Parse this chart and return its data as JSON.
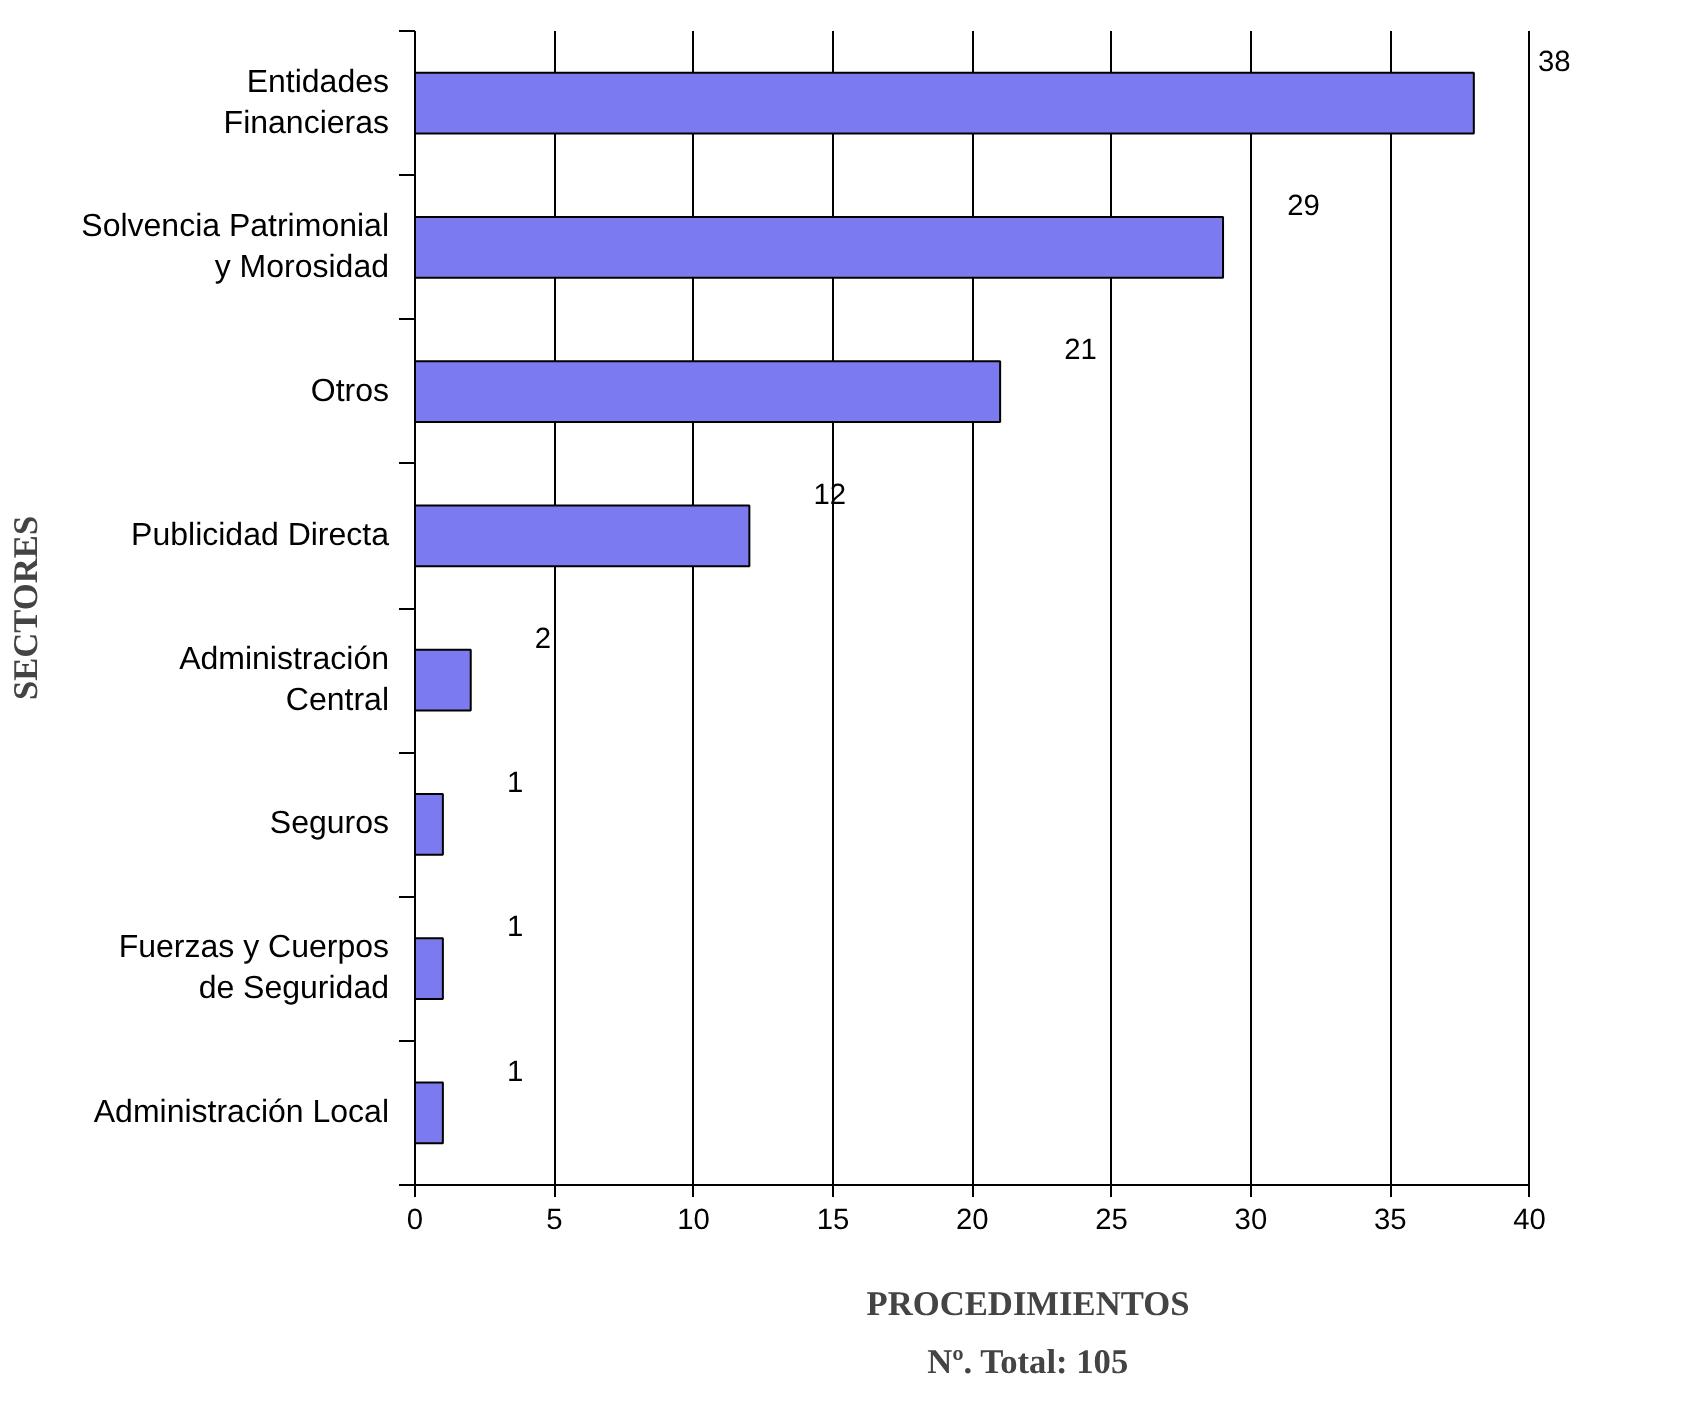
{
  "chart_data": {
    "type": "bar",
    "orientation": "horizontal",
    "ylabel": "SECTORES",
    "xlabel": "PROCEDIMIENTOS",
    "annotations": [
      "Nº. Total: 105"
    ],
    "categories": [
      "Entidades\nFinancieras",
      "Solvencia Patrimonial\ny Morosidad",
      "Otros",
      "Publicidad Directa",
      "Administración\nCentral",
      "Seguros",
      "Fuerzas y Cuerpos\nde Seguridad",
      "Administración Local"
    ],
    "values": [
      38,
      29,
      21,
      12,
      2,
      1,
      1,
      1
    ],
    "color": "#7b7bef",
    "xlim": [
      0,
      40
    ],
    "xticks": [
      0,
      5,
      10,
      15,
      20,
      25,
      30,
      35,
      40
    ],
    "grid": "x",
    "data_labels": true
  }
}
